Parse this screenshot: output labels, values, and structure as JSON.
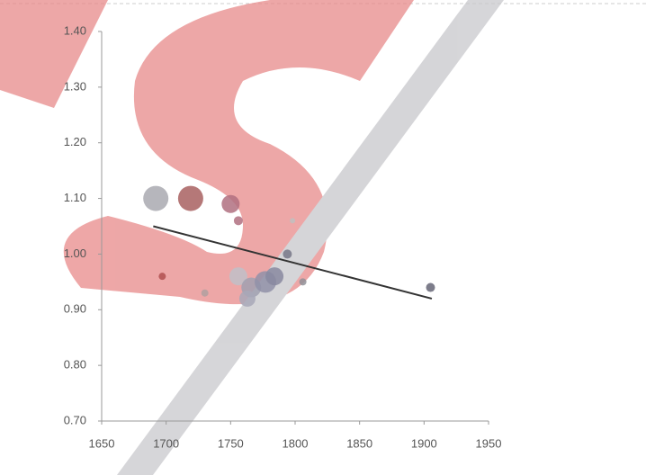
{
  "chart_data": {
    "type": "bubble",
    "xlim": [
      1650,
      1950
    ],
    "xticks": [
      1650,
      1700,
      1750,
      1800,
      1850,
      1900,
      1950
    ],
    "ylim": [
      0.7,
      1.4
    ],
    "yticks": [
      {
        "value": 0.7,
        "label": "0.70"
      },
      {
        "value": 0.8,
        "label": "0.80"
      },
      {
        "value": 0.9,
        "label": "0.90"
      },
      {
        "value": 1.0,
        "label": "1.00"
      },
      {
        "value": 1.1,
        "label": "1.10"
      },
      {
        "value": 1.2,
        "label": "1.20"
      },
      {
        "value": 1.3,
        "label": "1.30"
      },
      {
        "value": 1.4,
        "label": "1.40"
      }
    ],
    "series": [
      {
        "x": [
          1692,
          1719,
          1750,
          1756,
          1697,
          1730,
          1756,
          1766,
          1777,
          1784,
          1763,
          1798,
          1794,
          1806,
          1905
        ],
        "values": [
          1.1,
          1.1,
          1.09,
          1.06,
          0.96,
          0.93,
          0.96,
          0.94,
          0.95,
          0.96,
          0.92,
          1.06,
          1.0,
          0.95,
          0.94
        ],
        "sizes": [
          14,
          14,
          10,
          5,
          4,
          4,
          10,
          11,
          12,
          10,
          9,
          3,
          5,
          4,
          5
        ],
        "colors": [
          "#a9a9b0",
          "#a86060",
          "#b07080",
          "#b07080",
          "#b05050",
          "#b0a0a0",
          "#c0c0c8",
          "#a0a0b0",
          "#9090a8",
          "#8888a0",
          "#a8a8b8",
          "#c0c0c0",
          "#777788",
          "#909098",
          "#666677"
        ]
      }
    ],
    "trendline": {
      "x": [
        1690,
        1906
      ],
      "y": [
        1.05,
        0.92
      ],
      "color": "#333"
    }
  }
}
